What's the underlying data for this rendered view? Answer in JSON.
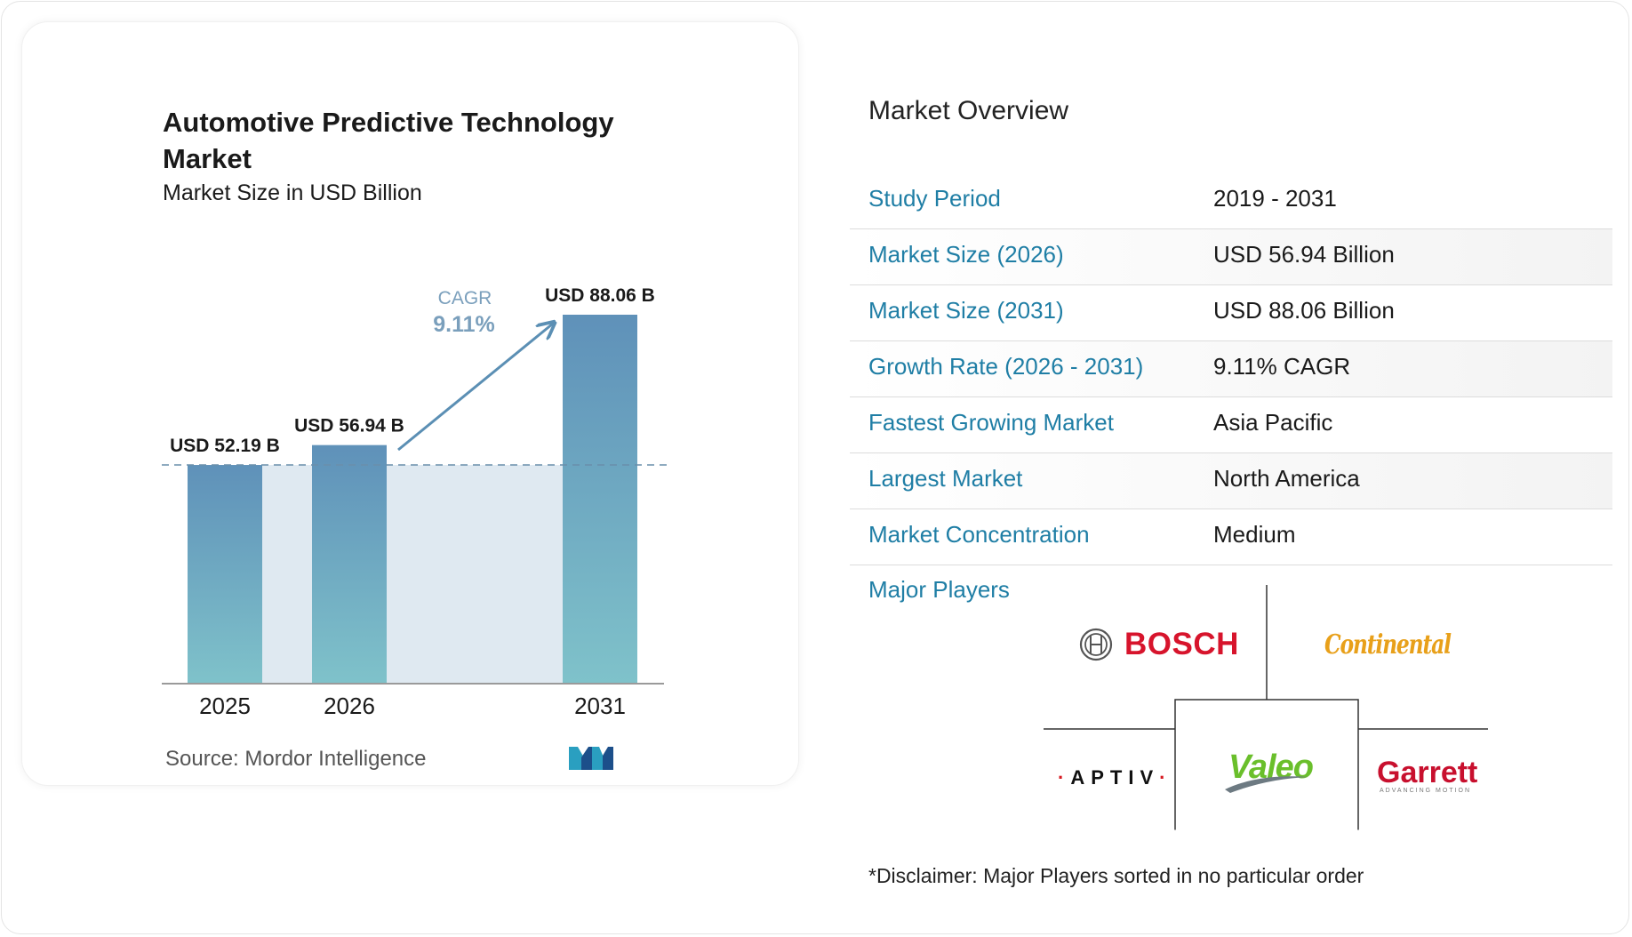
{
  "chart_data": {
    "type": "bar",
    "title": "Automotive Predictive Technology Market",
    "subtitle": "Market Size in USD Billion",
    "categories": [
      "2025",
      "2026",
      "2031"
    ],
    "values": [
      52.19,
      56.94,
      88.06
    ],
    "data_labels": [
      "USD 52.19 B",
      "USD 56.94 B",
      "USD 88.06 B"
    ],
    "cagr_label": "CAGR",
    "cagr_value": "9.11%",
    "grid": false,
    "bar_color_top": "#5f91b9",
    "bar_color_bottom": "#7fc2ca"
  },
  "source": "Source:  Mordor Intelligence",
  "overview": {
    "title": "Market Overview",
    "rows": [
      {
        "label": "Study Period",
        "value": "2019 - 2031"
      },
      {
        "label": "Market Size (2026)",
        "value": "USD 56.94 Billion"
      },
      {
        "label": "Market Size (2031)",
        "value": "USD 88.06 Billion"
      },
      {
        "label": "Growth Rate (2026 - 2031)",
        "value": "9.11% CAGR"
      },
      {
        "label": "Fastest Growing Market",
        "value": "Asia Pacific"
      },
      {
        "label": "Largest Market",
        "value": "North America"
      },
      {
        "label": "Market Concentration",
        "value": "Medium"
      }
    ]
  },
  "major_players": {
    "label": "Major Players",
    "logos": [
      "BOSCH",
      "Continental",
      "APTIV",
      "Valeo",
      "Garrett"
    ],
    "garrett_tagline": "ADVANCING MOTION"
  },
  "disclaimer": "*Disclaimer: Major Players sorted in no particular order",
  "colors": {
    "accent": "#1f7ea5",
    "bosch": "#d7142c",
    "continental": "#e8a01a",
    "valeo": "#6abf2b",
    "garrett": "#c8102e"
  }
}
